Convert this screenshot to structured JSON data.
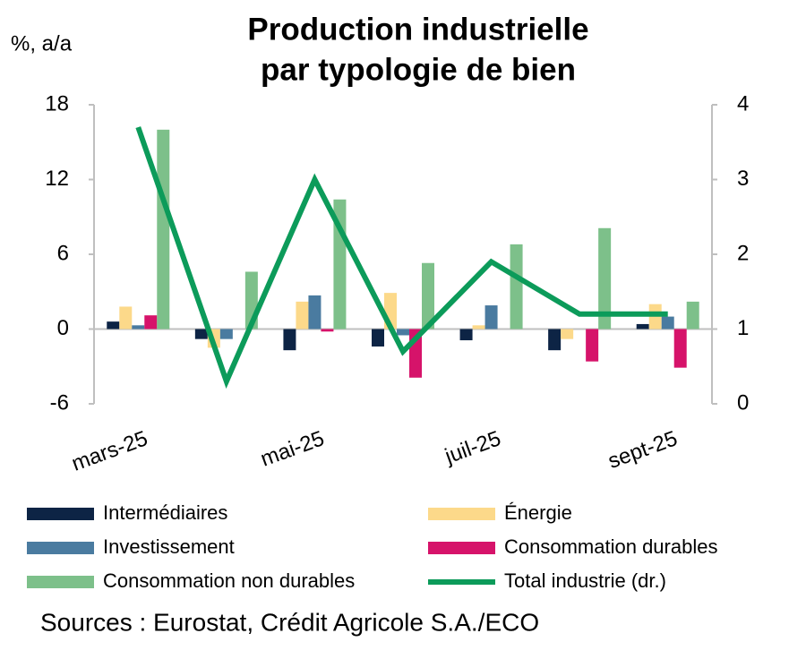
{
  "chart_data": {
    "type": "bar_line",
    "title": "Production industrielle",
    "subtitle": "par typologie de bien",
    "y_label": "%, a/a",
    "source": "Sources : Eurostat, Crédit Agricole S.A./ECO",
    "categories": [
      "mars-25",
      null,
      "mai-25",
      null,
      "juil-25",
      null,
      "sept-25"
    ],
    "ylim": [
      -6,
      18
    ],
    "yticks": [
      -6,
      0,
      6,
      12,
      18
    ],
    "y2lim": [
      0,
      4
    ],
    "y2ticks": [
      0,
      1,
      2,
      3,
      4
    ],
    "series": [
      {
        "name": "Intermédiaires",
        "color": "#0d2445",
        "values": [
          0.6,
          -0.8,
          -1.7,
          -1.4,
          -0.9,
          -1.7,
          0.4
        ]
      },
      {
        "name": "Énergie",
        "color": "#fcd98a",
        "values": [
          1.8,
          -1.5,
          2.2,
          2.9,
          0.3,
          -0.8,
          2.0
        ]
      },
      {
        "name": "Investissement",
        "color": "#4a7ba0",
        "values": [
          0.3,
          -0.8,
          2.7,
          -0.5,
          1.9,
          0.0,
          1.0
        ]
      },
      {
        "name": "Consommation durables",
        "color": "#d6136a",
        "values": [
          1.1,
          0.0,
          -0.2,
          -3.9,
          0.0,
          -2.6,
          -3.1
        ]
      },
      {
        "name": "Consommation non durables",
        "color": "#7dc08a",
        "values": [
          16.0,
          4.6,
          10.4,
          5.3,
          6.8,
          8.1,
          2.2
        ]
      },
      {
        "name": "Total industrie (dr.)",
        "color": "#0c9b5a",
        "axis": "y2",
        "type": "line",
        "values": [
          3.7,
          0.3,
          3.0,
          0.7,
          1.9,
          1.2,
          1.2
        ]
      }
    ]
  }
}
